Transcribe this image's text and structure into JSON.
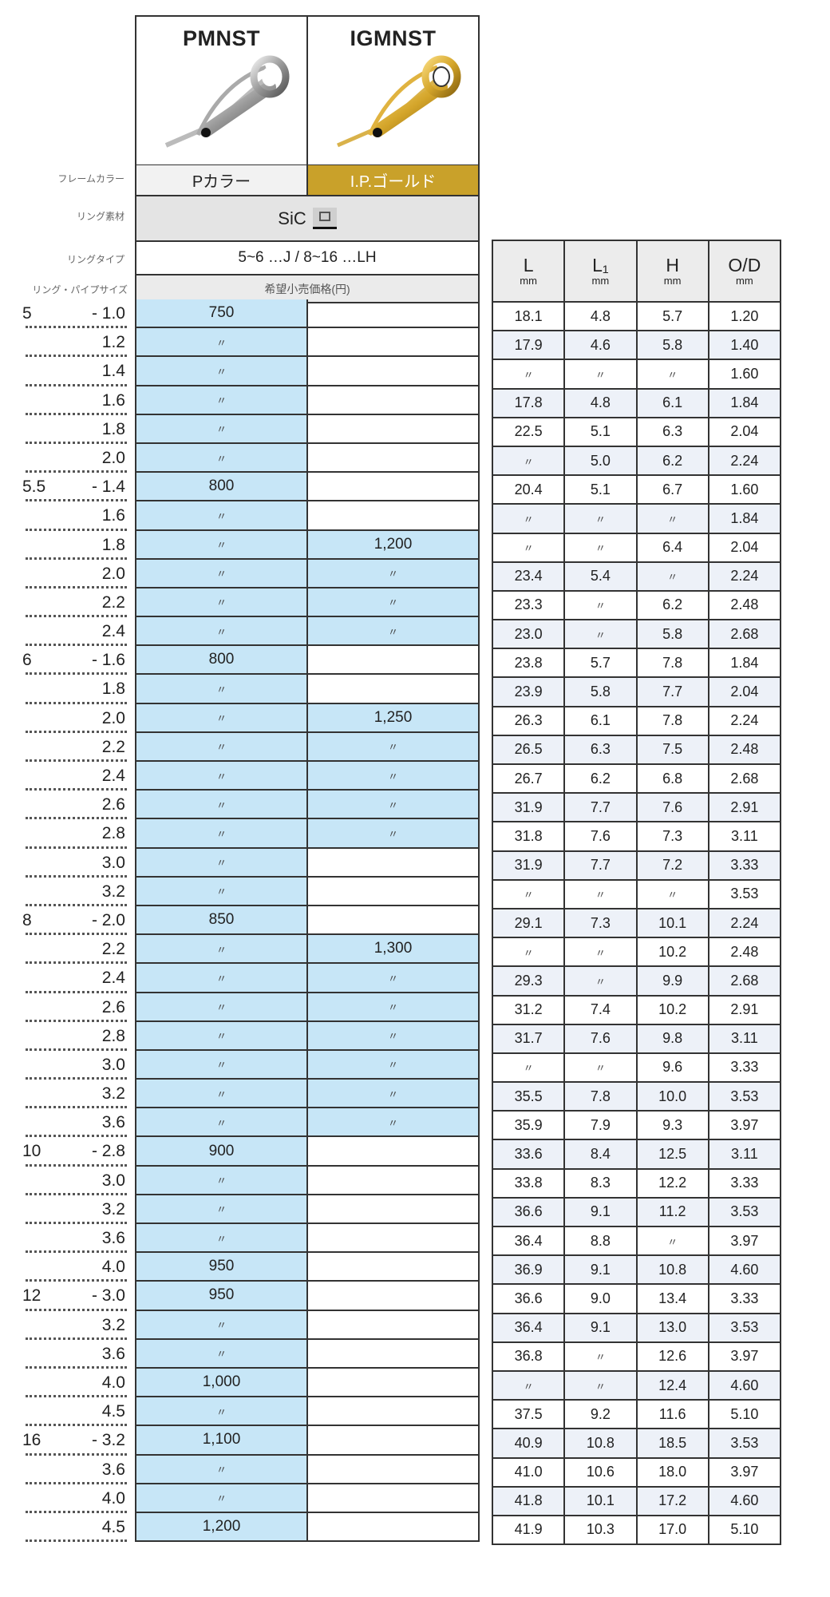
{
  "models": [
    {
      "name": "PMNST",
      "frame_color": "Pカラー"
    },
    {
      "name": "IGMNST",
      "frame_color": "I.P.ゴールド"
    }
  ],
  "labels": {
    "frame_color": "フレームカラー",
    "ring_material": "リング素材",
    "ring_type": "リングタイプ",
    "ring_pipe_size": "リング・パイプサイズ"
  },
  "ring_material": "SiC",
  "ring_type": "5~6 …J / 8~16 …LH",
  "price_header": "希望小売価格(円)",
  "colors": {
    "price_cell": "#c7e6f7",
    "gold": "#c9a12a",
    "alt_row": "#edf1f8"
  },
  "spec_headers": [
    {
      "label": "L",
      "unit": "mm"
    },
    {
      "label": "L₁",
      "unit": "mm"
    },
    {
      "label": "H",
      "unit": "mm"
    },
    {
      "label": "O/D",
      "unit": "mm"
    }
  ],
  "rows": [
    {
      "group": "5",
      "size": "- 1.0",
      "pmnst": "750",
      "igmnst": "",
      "spec": [
        "18.1",
        "4.8",
        "5.7",
        "1.20"
      ]
    },
    {
      "group": "",
      "size": "1.2",
      "pmnst": "〃",
      "igmnst": "",
      "spec": [
        "17.9",
        "4.6",
        "5.8",
        "1.40"
      ]
    },
    {
      "group": "",
      "size": "1.4",
      "pmnst": "〃",
      "igmnst": "",
      "spec": [
        "〃",
        "〃",
        "〃",
        "1.60"
      ]
    },
    {
      "group": "",
      "size": "1.6",
      "pmnst": "〃",
      "igmnst": "",
      "spec": [
        "17.8",
        "4.8",
        "6.1",
        "1.84"
      ]
    },
    {
      "group": "",
      "size": "1.8",
      "pmnst": "〃",
      "igmnst": "",
      "spec": [
        "22.5",
        "5.1",
        "6.3",
        "2.04"
      ]
    },
    {
      "group": "",
      "size": "2.0",
      "pmnst": "〃",
      "igmnst": "",
      "spec": [
        "〃",
        "5.0",
        "6.2",
        "2.24"
      ]
    },
    {
      "group": "5.5",
      "size": "- 1.4",
      "pmnst": "800",
      "igmnst": "",
      "spec": [
        "20.4",
        "5.1",
        "6.7",
        "1.60"
      ]
    },
    {
      "group": "",
      "size": "1.6",
      "pmnst": "〃",
      "igmnst": "",
      "spec": [
        "〃",
        "〃",
        "〃",
        "1.84"
      ]
    },
    {
      "group": "",
      "size": "1.8",
      "pmnst": "〃",
      "igmnst": "1,200",
      "spec": [
        "〃",
        "〃",
        "6.4",
        "2.04"
      ]
    },
    {
      "group": "",
      "size": "2.0",
      "pmnst": "〃",
      "igmnst": "〃",
      "spec": [
        "23.4",
        "5.4",
        "〃",
        "2.24"
      ]
    },
    {
      "group": "",
      "size": "2.2",
      "pmnst": "〃",
      "igmnst": "〃",
      "spec": [
        "23.3",
        "〃",
        "6.2",
        "2.48"
      ]
    },
    {
      "group": "",
      "size": "2.4",
      "pmnst": "〃",
      "igmnst": "〃",
      "spec": [
        "23.0",
        "〃",
        "5.8",
        "2.68"
      ]
    },
    {
      "group": "6",
      "size": "- 1.6",
      "pmnst": "800",
      "igmnst": "",
      "spec": [
        "23.8",
        "5.7",
        "7.8",
        "1.84"
      ]
    },
    {
      "group": "",
      "size": "1.8",
      "pmnst": "〃",
      "igmnst": "",
      "spec": [
        "23.9",
        "5.8",
        "7.7",
        "2.04"
      ]
    },
    {
      "group": "",
      "size": "2.0",
      "pmnst": "〃",
      "igmnst": "1,250",
      "spec": [
        "26.3",
        "6.1",
        "7.8",
        "2.24"
      ]
    },
    {
      "group": "",
      "size": "2.2",
      "pmnst": "〃",
      "igmnst": "〃",
      "spec": [
        "26.5",
        "6.3",
        "7.5",
        "2.48"
      ]
    },
    {
      "group": "",
      "size": "2.4",
      "pmnst": "〃",
      "igmnst": "〃",
      "spec": [
        "26.7",
        "6.2",
        "6.8",
        "2.68"
      ]
    },
    {
      "group": "",
      "size": "2.6",
      "pmnst": "〃",
      "igmnst": "〃",
      "spec": [
        "31.9",
        "7.7",
        "7.6",
        "2.91"
      ]
    },
    {
      "group": "",
      "size": "2.8",
      "pmnst": "〃",
      "igmnst": "〃",
      "spec": [
        "31.8",
        "7.6",
        "7.3",
        "3.11"
      ]
    },
    {
      "group": "",
      "size": "3.0",
      "pmnst": "〃",
      "igmnst": "",
      "spec": [
        "31.9",
        "7.7",
        "7.2",
        "3.33"
      ]
    },
    {
      "group": "",
      "size": "3.2",
      "pmnst": "〃",
      "igmnst": "",
      "spec": [
        "〃",
        "〃",
        "〃",
        "3.53"
      ]
    },
    {
      "group": "8",
      "size": "- 2.0",
      "pmnst": "850",
      "igmnst": "",
      "spec": [
        "29.1",
        "7.3",
        "10.1",
        "2.24"
      ]
    },
    {
      "group": "",
      "size": "2.2",
      "pmnst": "〃",
      "igmnst": "1,300",
      "spec": [
        "〃",
        "〃",
        "10.2",
        "2.48"
      ]
    },
    {
      "group": "",
      "size": "2.4",
      "pmnst": "〃",
      "igmnst": "〃",
      "spec": [
        "29.3",
        "〃",
        "9.9",
        "2.68"
      ]
    },
    {
      "group": "",
      "size": "2.6",
      "pmnst": "〃",
      "igmnst": "〃",
      "spec": [
        "31.2",
        "7.4",
        "10.2",
        "2.91"
      ]
    },
    {
      "group": "",
      "size": "2.8",
      "pmnst": "〃",
      "igmnst": "〃",
      "spec": [
        "31.7",
        "7.6",
        "9.8",
        "3.11"
      ]
    },
    {
      "group": "",
      "size": "3.0",
      "pmnst": "〃",
      "igmnst": "〃",
      "spec": [
        "〃",
        "〃",
        "9.6",
        "3.33"
      ]
    },
    {
      "group": "",
      "size": "3.2",
      "pmnst": "〃",
      "igmnst": "〃",
      "spec": [
        "35.5",
        "7.8",
        "10.0",
        "3.53"
      ]
    },
    {
      "group": "",
      "size": "3.6",
      "pmnst": "〃",
      "igmnst": "〃",
      "spec": [
        "35.9",
        "7.9",
        "9.3",
        "3.97"
      ]
    },
    {
      "group": "10",
      "size": "- 2.8",
      "pmnst": "900",
      "igmnst": "",
      "spec": [
        "33.6",
        "8.4",
        "12.5",
        "3.11"
      ]
    },
    {
      "group": "",
      "size": "3.0",
      "pmnst": "〃",
      "igmnst": "",
      "spec": [
        "33.8",
        "8.3",
        "12.2",
        "3.33"
      ]
    },
    {
      "group": "",
      "size": "3.2",
      "pmnst": "〃",
      "igmnst": "",
      "spec": [
        "36.6",
        "9.1",
        "11.2",
        "3.53"
      ]
    },
    {
      "group": "",
      "size": "3.6",
      "pmnst": "〃",
      "igmnst": "",
      "spec": [
        "36.4",
        "8.8",
        "〃",
        "3.97"
      ]
    },
    {
      "group": "",
      "size": "4.0",
      "pmnst": "950",
      "igmnst": "",
      "spec": [
        "36.9",
        "9.1",
        "10.8",
        "4.60"
      ]
    },
    {
      "group": "12",
      "size": "- 3.0",
      "pmnst": "950",
      "igmnst": "",
      "spec": [
        "36.6",
        "9.0",
        "13.4",
        "3.33"
      ]
    },
    {
      "group": "",
      "size": "3.2",
      "pmnst": "〃",
      "igmnst": "",
      "spec": [
        "36.4",
        "9.1",
        "13.0",
        "3.53"
      ]
    },
    {
      "group": "",
      "size": "3.6",
      "pmnst": "〃",
      "igmnst": "",
      "spec": [
        "36.8",
        "〃",
        "12.6",
        "3.97"
      ]
    },
    {
      "group": "",
      "size": "4.0",
      "pmnst": "1,000",
      "igmnst": "",
      "spec": [
        "〃",
        "〃",
        "12.4",
        "4.60"
      ]
    },
    {
      "group": "",
      "size": "4.5",
      "pmnst": "〃",
      "igmnst": "",
      "spec": [
        "37.5",
        "9.2",
        "11.6",
        "5.10"
      ]
    },
    {
      "group": "16",
      "size": "- 3.2",
      "pmnst": "1,100",
      "igmnst": "",
      "spec": [
        "40.9",
        "10.8",
        "18.5",
        "3.53"
      ]
    },
    {
      "group": "",
      "size": "3.6",
      "pmnst": "〃",
      "igmnst": "",
      "spec": [
        "41.0",
        "10.6",
        "18.0",
        "3.97"
      ]
    },
    {
      "group": "",
      "size": "4.0",
      "pmnst": "〃",
      "igmnst": "",
      "spec": [
        "41.8",
        "10.1",
        "17.2",
        "4.60"
      ]
    },
    {
      "group": "",
      "size": "4.5",
      "pmnst": "1,200",
      "igmnst": "",
      "spec": [
        "41.9",
        "10.3",
        "17.0",
        "5.10"
      ]
    }
  ]
}
